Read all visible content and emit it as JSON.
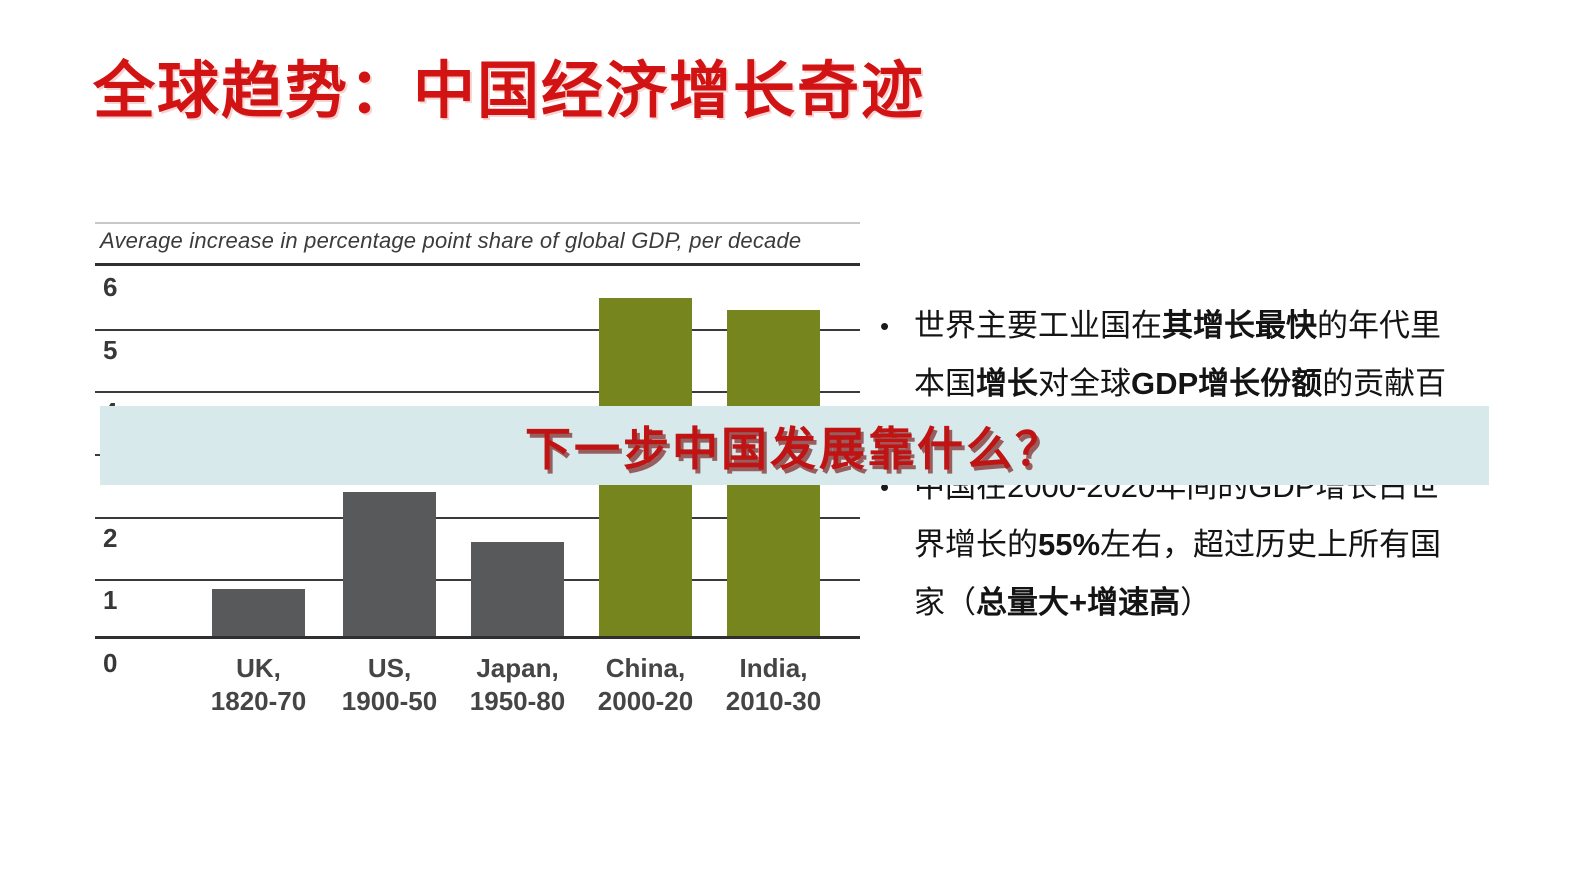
{
  "page": {
    "title": "全球趋势：中国经济增长奇迹"
  },
  "banner": {
    "text": "下一步中国发展靠什么？",
    "background_color": "#d8e9eb",
    "text_color": "#c01313"
  },
  "chart_data": {
    "type": "bar",
    "title": "Average increase in percentage point share of global GDP, per decade",
    "categories": [
      "UK, 1820-70",
      "US, 1900-50",
      "Japan, 1950-80",
      "China, 2000-20",
      "India, 2010-30"
    ],
    "category_line1": [
      "UK,",
      "US,",
      "Japan,",
      "China,",
      "India,"
    ],
    "category_line2": [
      "1820-70",
      "1900-50",
      "1950-80",
      "2000-20",
      "2010-30"
    ],
    "values": [
      0.75,
      2.3,
      1.5,
      5.4,
      5.2
    ],
    "bar_colors": [
      "#58595b",
      "#58595b",
      "#58595b",
      "#76851e",
      "#76851e"
    ],
    "xlabel": "",
    "ylabel": "",
    "ylim": [
      0,
      6
    ],
    "yticks": [
      6,
      5,
      4,
      3,
      2,
      1,
      0
    ],
    "grid": "horizontal",
    "legend": "none"
  },
  "bullets": {
    "marker": "•",
    "item1": {
      "lines": [
        [
          {
            "t": "世界主要工业国在",
            "b": false
          },
          {
            "t": "其增长最快",
            "b": true
          },
          {
            "t": "的年代里",
            "b": false
          }
        ],
        [
          {
            "t": "本国",
            "b": false
          },
          {
            "t": "增长",
            "b": true
          },
          {
            "t": "对全球",
            "b": false
          },
          {
            "t": "GDP增长份额",
            "b": true
          },
          {
            "t": "的贡献百",
            "b": false
          }
        ]
      ]
    },
    "item2": {
      "lines": [
        [
          {
            "t": "中国在2000-2020年间的GDP增长占世",
            "b": false
          }
        ],
        [
          {
            "t": "界增长的",
            "b": false
          },
          {
            "t": "55%",
            "b": true
          },
          {
            "t": "左右，超过历史上所有国",
            "b": false
          }
        ],
        [
          {
            "t": "家（",
            "b": false
          },
          {
            "t": "总量大+增速高",
            "b": true
          },
          {
            "t": "）",
            "b": false
          }
        ]
      ]
    }
  }
}
